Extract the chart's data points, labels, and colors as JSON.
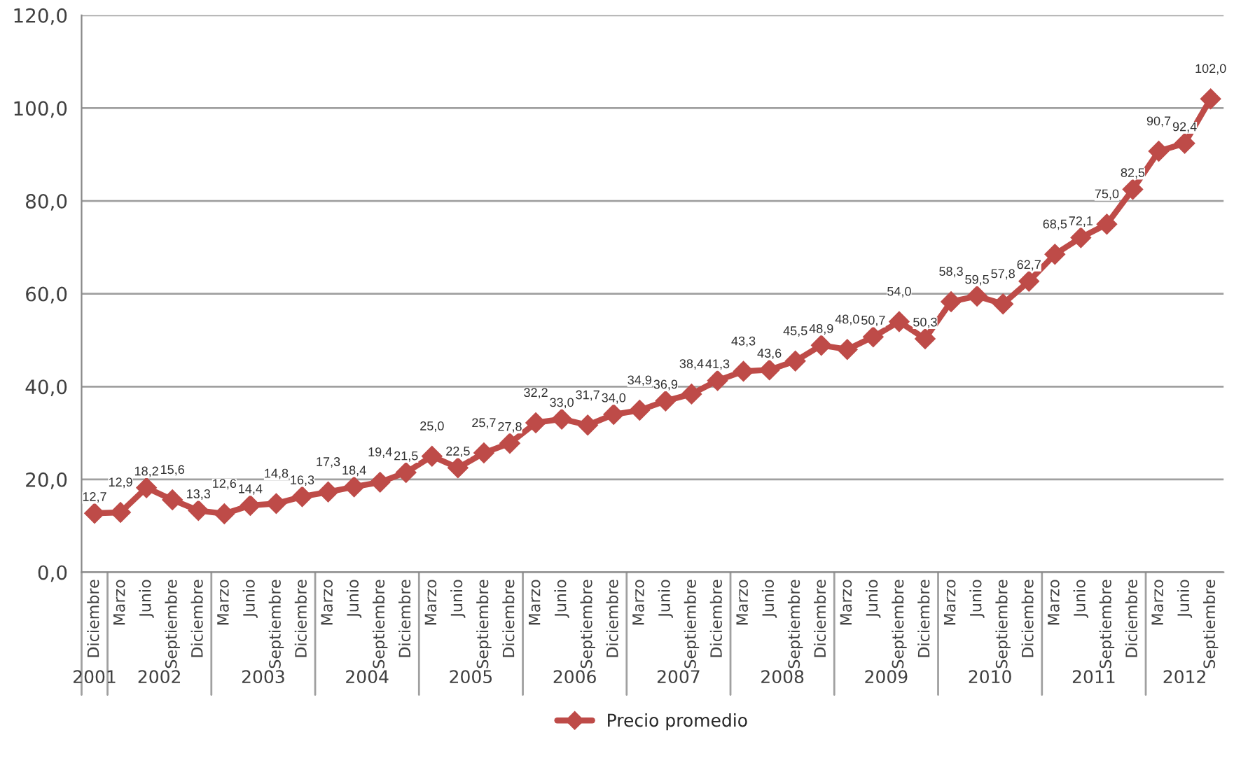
{
  "chart_data": {
    "type": "line",
    "categories": [
      "Diciembre",
      "Marzo",
      "Junio",
      "Septiembre",
      "Diciembre",
      "Marzo",
      "Junio",
      "Septiembre",
      "Diciembre",
      "Marzo",
      "Junio",
      "Septiembre",
      "Diciembre",
      "Marzo",
      "Junio",
      "Septiembre",
      "Diciembre",
      "Marzo",
      "Junio",
      "Septiembre",
      "Diciembre",
      "Marzo",
      "Junio",
      "Septiembre",
      "Diciembre",
      "Marzo",
      "Junio",
      "Septiembre",
      "Diciembre",
      "Marzo",
      "Junio",
      "Septiembre",
      "Diciembre",
      "Marzo",
      "Junio",
      "Septiembre",
      "Diciembre",
      "Marzo",
      "Junio",
      "Septiembre",
      "Diciembre",
      "Marzo",
      "Junio",
      "Septiembre"
    ],
    "series": [
      {
        "name": "Precio promedio",
        "color": "#be4b48",
        "values": [
          12.7,
          12.9,
          18.2,
          15.6,
          13.3,
          12.6,
          14.4,
          14.8,
          16.3,
          17.3,
          18.4,
          19.4,
          21.5,
          25.0,
          22.5,
          25.7,
          27.8,
          32.2,
          33.0,
          31.7,
          34.0,
          34.9,
          36.9,
          38.4,
          41.3,
          43.3,
          43.6,
          45.5,
          48.9,
          48.0,
          50.7,
          54.0,
          50.3,
          58.3,
          59.5,
          57.8,
          62.7,
          68.5,
          72.1,
          75.0,
          82.5,
          90.7,
          92.4,
          102.0
        ],
        "value_labels": [
          "12,7",
          "12,9",
          "18,2",
          "15,6",
          "13,3",
          "12,6",
          "14,4",
          "14,8",
          "16,3",
          "17,3",
          "18,4",
          "19,4",
          "21,5",
          "25,0",
          "22,5",
          "25,7",
          "27,8",
          "32,2",
          "33,0",
          "31,7",
          "34,0",
          "34,9",
          "36,9",
          "38,4",
          "41,3",
          "43,3",
          "43,6",
          "45,5",
          "48,9",
          "48,0",
          "50,7",
          "54,0",
          "50,3",
          "58,3",
          "59,5",
          "57,8",
          "62,7",
          "68,5",
          "72,1",
          "75,0",
          "82,5",
          "90,7",
          "92,4",
          "102,0"
        ]
      }
    ],
    "ylim": [
      0,
      120
    ],
    "yticks": [
      {
        "value": 0,
        "label": "0,0"
      },
      {
        "value": 20,
        "label": "20,0"
      },
      {
        "value": 40,
        "label": "40,0"
      },
      {
        "value": 60,
        "label": "60,0"
      },
      {
        "value": 80,
        "label": "80,0"
      },
      {
        "value": 100,
        "label": "100,0"
      },
      {
        "value": 120,
        "label": "120,0"
      }
    ],
    "annotations": [
      "2001",
      "2002",
      "2003",
      "2004",
      "2005",
      "2006",
      "2007",
      "2008",
      "2009",
      "2010",
      "2011",
      "2012"
    ],
    "grid": "y",
    "legend": "bottom",
    "marker": "diamond",
    "line_style": "solid"
  }
}
